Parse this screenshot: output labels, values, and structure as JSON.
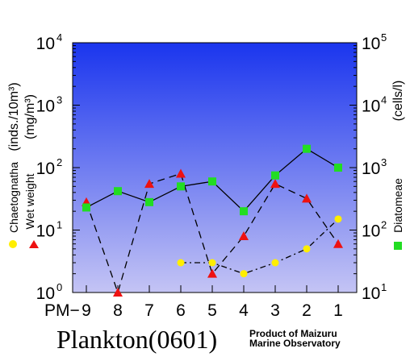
{
  "chart_data": {
    "type": "line",
    "title": "Plankton(0601)",
    "credit": [
      "Product of Maizuru",
      "Marine Observatory"
    ],
    "x_prefix": "PM−",
    "categories": [
      "9",
      "8",
      "7",
      "6",
      "5",
      "4",
      "3",
      "2",
      "1"
    ],
    "left_axis": {
      "scale": "log",
      "ylim": [
        1,
        10000
      ],
      "ticks": [
        {
          "base": "10",
          "exp": "0"
        },
        {
          "base": "10",
          "exp": "1"
        },
        {
          "base": "10",
          "exp": "2"
        },
        {
          "base": "10",
          "exp": "3"
        },
        {
          "base": "10",
          "exp": "4"
        }
      ],
      "label_lines": [
        "(inds./10m³)",
        "(mg/m³)"
      ]
    },
    "right_axis": {
      "scale": "log",
      "ylim": [
        10,
        100000
      ],
      "ticks": [
        {
          "base": "10",
          "exp": "1"
        },
        {
          "base": "10",
          "exp": "2"
        },
        {
          "base": "10",
          "exp": "3"
        },
        {
          "base": "10",
          "exp": "4"
        },
        {
          "base": "10",
          "exp": "5"
        }
      ],
      "label": "(cells/l)"
    },
    "series": [
      {
        "name": "Chaetognatha",
        "axis": "left",
        "marker": "circle",
        "color": "#ffee00",
        "line": "dashdot",
        "values": [
          null,
          null,
          null,
          3,
          3,
          2,
          3,
          5,
          15
        ]
      },
      {
        "name": "Wet weight",
        "axis": "left",
        "marker": "triangle",
        "color": "#ee1111",
        "line": "dashed",
        "values": [
          28,
          1,
          55,
          80,
          2,
          8,
          55,
          32,
          6
        ]
      },
      {
        "name": "Diatomeae",
        "axis": "right",
        "marker": "square",
        "color": "#22dd22",
        "line": "solid",
        "values": [
          230,
          420,
          280,
          500,
          600,
          200,
          750,
          2000,
          1000
        ]
      }
    ],
    "background": {
      "top": "#1a35ee",
      "bottom": "#c4c4f4"
    }
  }
}
